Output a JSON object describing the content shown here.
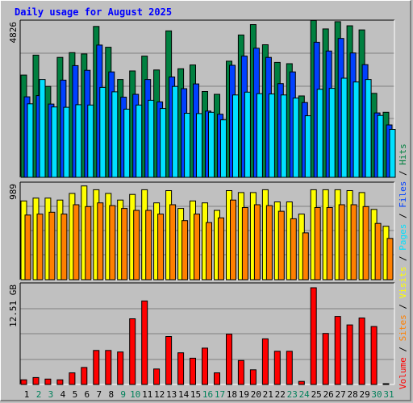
{
  "title": "Daily usage for August 2025",
  "chart_data": {
    "type": "bar",
    "title": "Daily usage for August 2025",
    "categories": [
      "1",
      "2",
      "3",
      "4",
      "5",
      "6",
      "7",
      "8",
      "9",
      "10",
      "11",
      "12",
      "13",
      "14",
      "15",
      "16",
      "17",
      "18",
      "19",
      "20",
      "21",
      "22",
      "23",
      "24",
      "25",
      "26",
      "27",
      "28",
      "29",
      "30",
      "31"
    ],
    "weekend_days": [
      "2",
      "3",
      "9",
      "10",
      "16",
      "17",
      "23",
      "24",
      "30",
      "31"
    ],
    "panels": [
      {
        "name": "hits-files-pages",
        "ymax_label": "4826",
        "ymax": 4826,
        "series": [
          {
            "name": "Hits",
            "color": "#008040",
            "values": [
              3240,
              3870,
              2880,
              3800,
              3950,
              3910,
              4780,
              4120,
              3100,
              3370,
              3840,
              3400,
              4640,
              3440,
              3560,
              2720,
              2630,
              3680,
              4510,
              4840,
              4200,
              3640,
              3600,
              2580,
              4970,
              4700,
              4930,
              4800,
              4670,
              2660,
              2060
            ]
          },
          {
            "name": "Files",
            "color": "#0040ff",
            "values": [
              2550,
              2590,
              2320,
              3080,
              3540,
              3390,
              4190,
              3340,
              2540,
              2630,
              3100,
              2390,
              3180,
              2810,
              2960,
              2100,
              2000,
              3550,
              3840,
              4090,
              3800,
              2970,
              3340,
              2370,
              4280,
              4000,
              4400,
              3940,
              3570,
              2040,
              1660
            ]
          },
          {
            "name": "Pages",
            "color": "#00e0ff",
            "values": [
              2330,
              3100,
              2230,
              2220,
              2300,
              2290,
              2850,
              2710,
              2160,
              2290,
              2440,
              2180,
              2880,
              2030,
              2020,
              2060,
              1820,
              2610,
              2700,
              2650,
              2640,
              2610,
              2510,
              1950,
              2790,
              2820,
              3140,
              3020,
              3100,
              1960,
              1520
            ]
          }
        ]
      },
      {
        "name": "visits-sites",
        "ymax_label": "989",
        "ymax": 989,
        "series": [
          {
            "name": "Visits",
            "color": "#ffff00",
            "values": [
              840,
              870,
              870,
              850,
              920,
              1000,
              960,
              920,
              850,
              910,
              960,
              820,
              950,
              760,
              840,
              820,
              740,
              950,
              930,
              930,
              960,
              830,
              830,
              700,
              960,
              960,
              960,
              950,
              930,
              750,
              570
            ]
          },
          {
            "name": "Sites",
            "color": "#ff8000",
            "values": [
              690,
              700,
              720,
              700,
              800,
              780,
              820,
              790,
              760,
              740,
              740,
              700,
              800,
              630,
              700,
              610,
              660,
              850,
              770,
              800,
              790,
              730,
              650,
              500,
              770,
              770,
              800,
              800,
              780,
              600,
              440
            ]
          }
        ]
      },
      {
        "name": "volume",
        "ymax_label": "12.51 GB",
        "ymax": 12.51,
        "series": [
          {
            "name": "Volume",
            "color": "#ff0000",
            "values": [
              0.6,
              0.9,
              0.7,
              0.6,
              1.5,
              2.2,
              4.4,
              4.4,
              4.2,
              8.5,
              10.8,
              2.0,
              6.2,
              4.1,
              3.4,
              4.7,
              1.5,
              6.5,
              3.1,
              1.9,
              5.9,
              4.3,
              4.3,
              0.4,
              12.51,
              6.6,
              8.8,
              7.7,
              8.6,
              7.5,
              0.1
            ]
          }
        ]
      }
    ]
  },
  "right_labels": [
    {
      "text": "Volume",
      "color": "#ff0000"
    },
    {
      "text": " / ",
      "color": "#000000"
    },
    {
      "text": "Sites",
      "color": "#ff8000"
    },
    {
      "text": " / ",
      "color": "#000000"
    },
    {
      "text": "Visits",
      "color": "#ffff00"
    },
    {
      "text": " / ",
      "color": "#000000"
    },
    {
      "text": "Pages",
      "color": "#00e0ff"
    },
    {
      "text": " / ",
      "color": "#000000"
    },
    {
      "text": "Files",
      "color": "#0040ff"
    },
    {
      "text": " / ",
      "color": "#000000"
    },
    {
      "text": "Hits",
      "color": "#008040"
    }
  ]
}
